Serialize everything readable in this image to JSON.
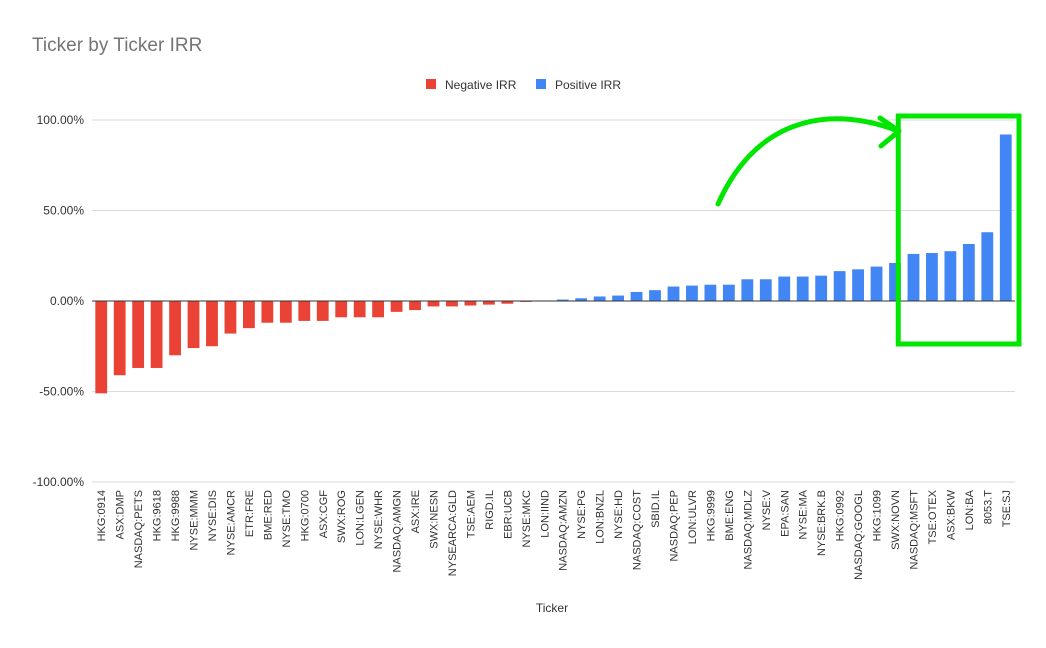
{
  "chart_data": {
    "type": "bar",
    "title": "Ticker by Ticker IRR",
    "xlabel": "Ticker",
    "ylabel": "",
    "ylim": [
      -1.0,
      1.0
    ],
    "yticks": [
      {
        "value": 1.0,
        "label": "100.00%"
      },
      {
        "value": 0.5,
        "label": "50.00%"
      },
      {
        "value": 0.0,
        "label": "0.00%"
      },
      {
        "value": -0.5,
        "label": "-50.00%"
      },
      {
        "value": -1.0,
        "label": "-100.00%"
      }
    ],
    "grid": true,
    "legend_position": "top-center",
    "series": [
      {
        "name": "Negative IRR",
        "color": "#ea4335"
      },
      {
        "name": "Positive IRR",
        "color": "#4285f4"
      }
    ],
    "categories": [
      "HKG:0914",
      "ASX:DMP",
      "NASDAQ:PETS",
      "HKG:9618",
      "HKG:9988",
      "NYSE:MMM",
      "NYSE:DIS",
      "NYSE:AMCR",
      "ETR:FRE",
      "BME:RED",
      "NYSE:TMO",
      "HKG:0700",
      "ASX:CGF",
      "SWX:ROG",
      "LON:LGEN",
      "NYSE:WHR",
      "NASDAQ:AMGN",
      "ASX:IRE",
      "SWX:NESN",
      "NYSEARCA:GLD",
      "TSE:AEM",
      "RIGD.IL",
      "EBR:UCB",
      "NYSE:MKC",
      "LON:IIND",
      "NASDAQ:AMZN",
      "NYSE:PG",
      "LON:BNZL",
      "NYSE:HD",
      "NASDAQ:COST",
      "SBID.IL",
      "NASDAQ:PEP",
      "LON:ULVR",
      "HKG:9999",
      "BME:ENG",
      "NASDAQ:MDLZ",
      "NYSE:V",
      "EPA:SAN",
      "NYSE:MA",
      "NYSE:BRK.B",
      "HKG:0992",
      "NASDAQ:GOOGL",
      "HKG:1099",
      "SWX:NOVN",
      "NASDAQ:MSFT",
      "TSE:OTEX",
      "ASX:BKW",
      "LON:BA",
      "8053.T",
      "TSE:SJ"
    ],
    "values": [
      -0.51,
      -0.41,
      -0.37,
      -0.37,
      -0.3,
      -0.26,
      -0.25,
      -0.18,
      -0.15,
      -0.12,
      -0.12,
      -0.11,
      -0.11,
      -0.09,
      -0.09,
      -0.09,
      -0.06,
      -0.05,
      -0.03,
      -0.03,
      -0.025,
      -0.02,
      -0.015,
      -0.005,
      0.003,
      0.008,
      0.015,
      0.025,
      0.03,
      0.05,
      0.06,
      0.08,
      0.085,
      0.09,
      0.09,
      0.12,
      0.12,
      0.135,
      0.135,
      0.14,
      0.165,
      0.175,
      0.19,
      0.21,
      0.26,
      0.265,
      0.275,
      0.315,
      0.38,
      0.92
    ]
  },
  "annotations": {
    "arrow_color": "#00e600",
    "highlight_box_color": "#00e600",
    "highlighted_categories": [
      "NASDAQ:MSFT",
      "TSE:OTEX",
      "ASX:BKW",
      "LON:BA",
      "8053.T",
      "TSE:SJ"
    ]
  }
}
